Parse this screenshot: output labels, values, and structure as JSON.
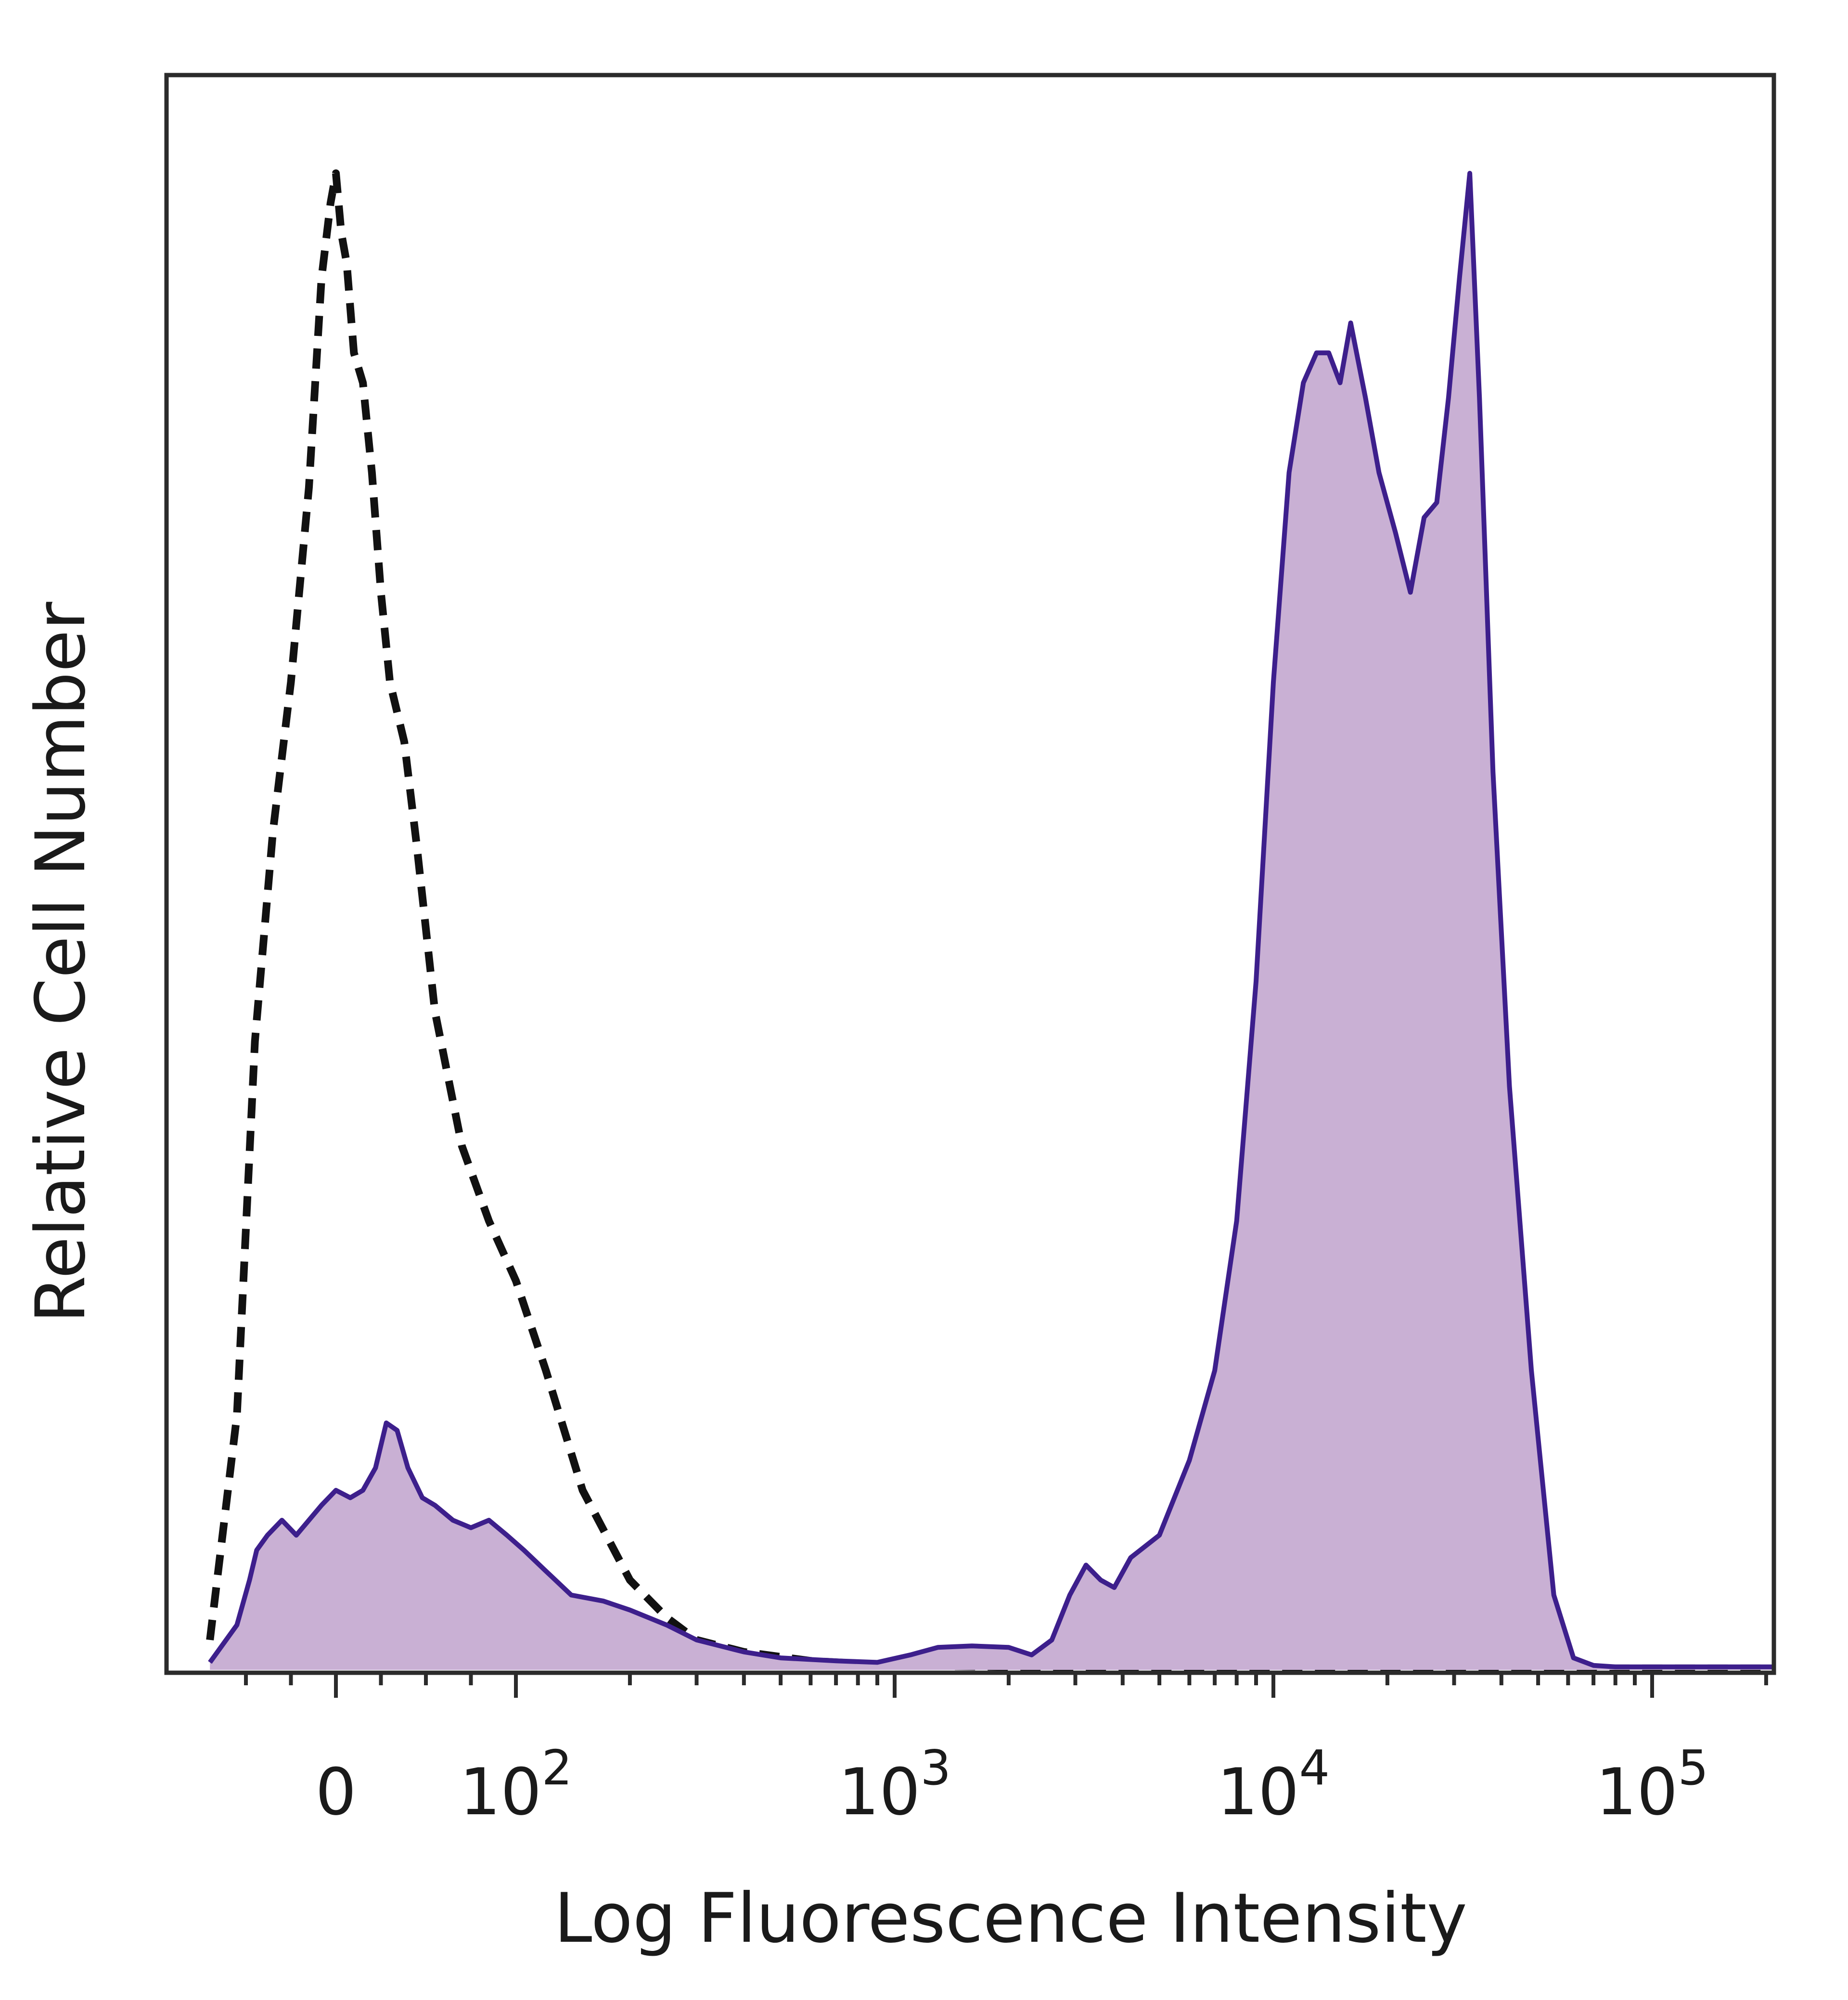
{
  "chart_data": {
    "type": "area",
    "title": "",
    "xlabel": "Log Fluorescence Intensity",
    "ylabel": "Relative Cell Number",
    "x_scale": "biexponential (linear near 0, log above 10^2)",
    "xlim": [
      -70,
      230000
    ],
    "ylim": [
      0,
      1.08
    ],
    "grid": false,
    "legend": "none",
    "x_ticks": [
      {
        "value": 0,
        "label": "0",
        "sup": ""
      },
      {
        "value": 100,
        "label": "10",
        "sup": "2"
      },
      {
        "value": 1000,
        "label": "10",
        "sup": "3"
      },
      {
        "value": 10000,
        "label": "10",
        "sup": "4"
      },
      {
        "value": 100000,
        "label": "10",
        "sup": "5"
      }
    ],
    "colors": {
      "stained_fill": "#c9b0d4",
      "stained_line": "#3d1f8c",
      "control_line": "#111111",
      "frame": "#2b2b2b"
    },
    "series": [
      {
        "style": "dashed-outline",
        "x": [
          -70,
          -55,
          -45,
          -35,
          -25,
          -15,
          -8,
          -3,
          0,
          3,
          6,
          10,
          15,
          20,
          25,
          30,
          38,
          45,
          55,
          70,
          85,
          100,
          120,
          150,
          200,
          250,
          300,
          400,
          600,
          1000,
          2000,
          5000,
          10000,
          50000,
          200000
        ],
        "y": [
          0.02,
          0.17,
          0.42,
          0.56,
          0.66,
          0.79,
          0.93,
          0.98,
          1.0,
          0.96,
          0.94,
          0.88,
          0.86,
          0.8,
          0.72,
          0.66,
          0.62,
          0.55,
          0.44,
          0.35,
          0.3,
          0.26,
          0.2,
          0.12,
          0.06,
          0.035,
          0.02,
          0.012,
          0.006,
          0.003,
          0.002,
          0.001,
          0.001,
          0.001,
          0.001
        ]
      },
      {
        "style": "filled",
        "x": [
          -70,
          -55,
          -48,
          -44,
          -38,
          -30,
          -22,
          -15,
          -8,
          0,
          8,
          15,
          22,
          28,
          34,
          40,
          48,
          55,
          65,
          75,
          85,
          95,
          105,
          120,
          140,
          170,
          200,
          250,
          300,
          400,
          500,
          700,
          900,
          1100,
          1300,
          1600,
          2000,
          2300,
          2600,
          2900,
          3200,
          3500,
          3800,
          4200,
          5000,
          6000,
          7000,
          8000,
          9000,
          10000,
          11000,
          12000,
          13000,
          14000,
          15000,
          16000,
          17500,
          19000,
          21000,
          23000,
          25000,
          27000,
          29000,
          31000,
          33000,
          35000,
          38000,
          42000,
          48000,
          55000,
          62000,
          70000,
          80000,
          100000,
          150000,
          230000
        ],
        "y": [
          0.005,
          0.03,
          0.06,
          0.08,
          0.09,
          0.1,
          0.09,
          0.1,
          0.11,
          0.12,
          0.115,
          0.12,
          0.135,
          0.165,
          0.16,
          0.135,
          0.115,
          0.11,
          0.1,
          0.095,
          0.1,
          0.09,
          0.08,
          0.066,
          0.05,
          0.046,
          0.04,
          0.03,
          0.02,
          0.012,
          0.008,
          0.006,
          0.005,
          0.01,
          0.015,
          0.016,
          0.015,
          0.01,
          0.02,
          0.05,
          0.07,
          0.06,
          0.055,
          0.075,
          0.09,
          0.14,
          0.2,
          0.3,
          0.46,
          0.66,
          0.8,
          0.86,
          0.88,
          0.88,
          0.86,
          0.9,
          0.85,
          0.8,
          0.76,
          0.72,
          0.77,
          0.78,
          0.85,
          0.93,
          1.0,
          0.85,
          0.6,
          0.39,
          0.2,
          0.05,
          0.008,
          0.003,
          0.002,
          0.002,
          0.002,
          0.002
        ]
      }
    ]
  }
}
